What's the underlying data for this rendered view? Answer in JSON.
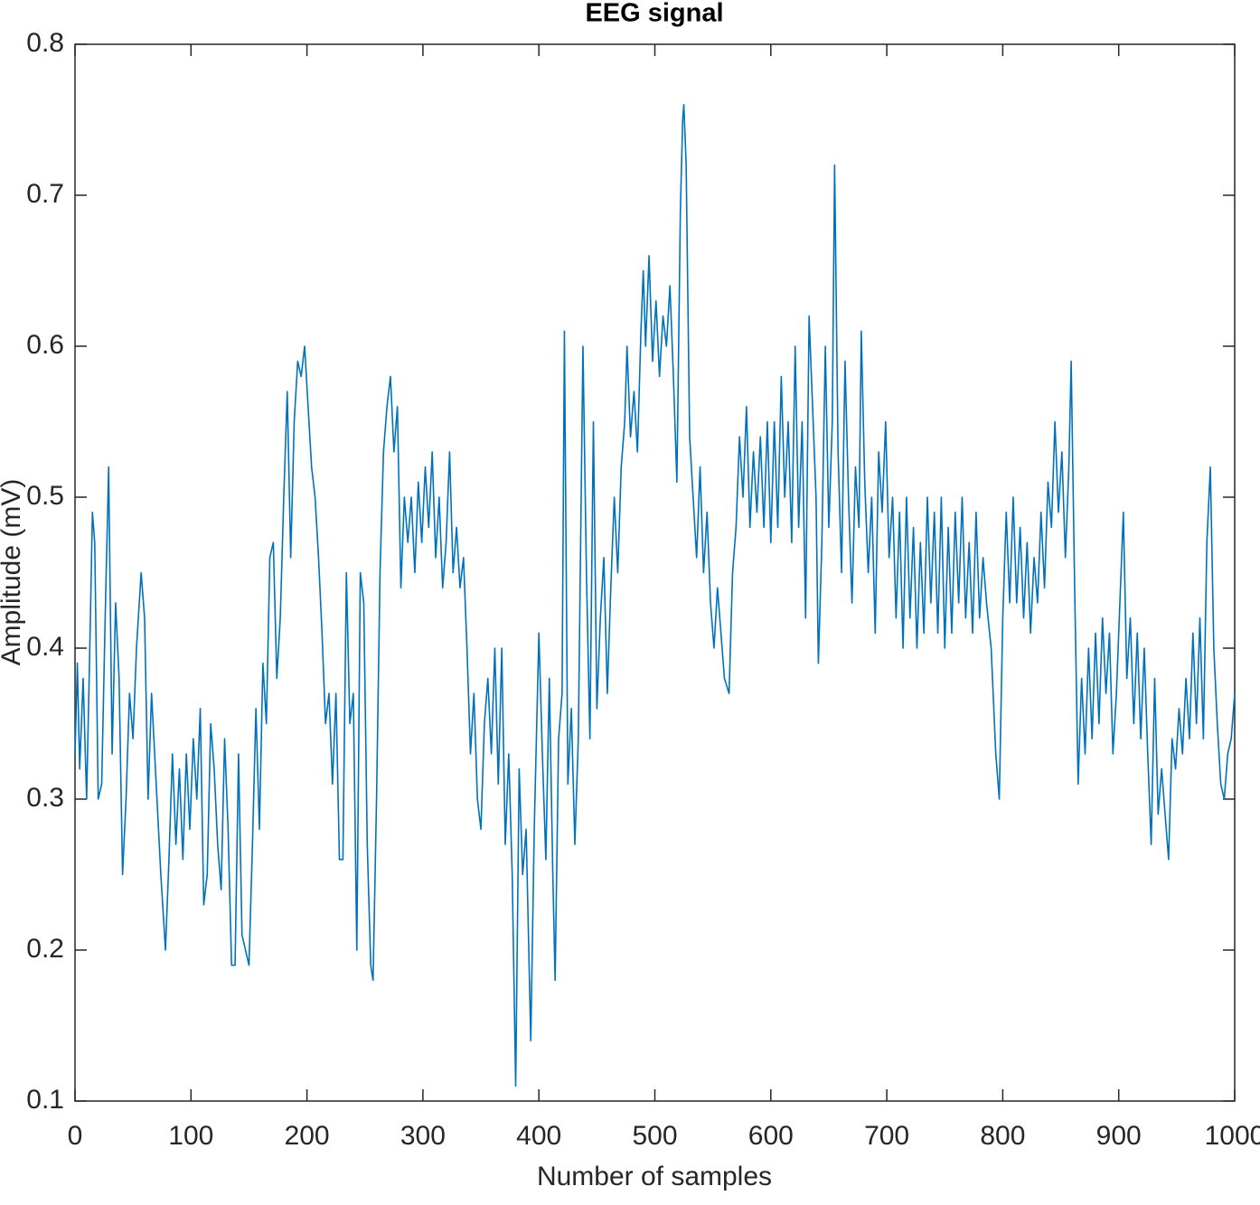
{
  "chart_data": {
    "type": "line",
    "title": "EEG signal",
    "x_label": "Number of samples",
    "y_label": "Amplitude (mV)",
    "x": [
      0,
      2,
      4,
      7,
      10,
      13,
      15,
      17,
      20,
      23,
      26,
      29,
      32,
      35,
      38,
      41,
      44,
      47,
      50,
      53,
      57,
      60,
      63,
      66,
      70,
      74,
      78,
      81,
      84,
      87,
      90,
      93,
      96,
      99,
      102,
      105,
      108,
      111,
      114,
      117,
      120,
      123,
      126,
      129,
      132,
      135,
      138,
      141,
      144,
      147,
      150,
      153,
      156,
      159,
      162,
      165,
      168,
      171,
      174,
      177,
      180,
      183,
      186,
      189,
      192,
      195,
      198,
      201,
      204,
      207,
      210,
      213,
      216,
      219,
      222,
      225,
      228,
      231,
      234,
      237,
      240,
      243,
      246,
      249,
      252,
      255,
      257,
      260,
      263,
      266,
      269,
      272,
      275,
      278,
      281,
      284,
      287,
      290,
      293,
      296,
      299,
      302,
      305,
      308,
      311,
      314,
      317,
      320,
      323,
      326,
      329,
      332,
      335,
      338,
      341,
      344,
      347,
      350,
      353,
      356,
      359,
      362,
      365,
      368,
      371,
      374,
      377,
      380,
      383,
      386,
      389,
      393,
      396,
      400,
      403,
      406,
      409,
      412,
      414,
      417,
      420,
      422,
      425,
      428,
      431,
      434,
      438,
      441,
      444,
      447,
      450,
      453,
      456,
      459,
      462,
      465,
      468,
      471,
      474,
      476,
      479,
      482,
      485,
      488,
      490,
      492,
      495,
      498,
      501,
      504,
      507,
      510,
      513,
      516,
      519,
      522,
      524,
      525,
      527,
      530,
      533,
      536,
      539,
      542,
      545,
      548,
      551,
      554,
      557,
      560,
      564,
      567,
      570,
      573,
      576,
      579,
      582,
      585,
      588,
      591,
      594,
      597,
      600,
      603,
      606,
      609,
      612,
      615,
      618,
      621,
      624,
      627,
      630,
      633,
      636,
      639,
      641,
      644,
      647,
      650,
      653,
      655,
      658,
      661,
      664,
      667,
      670,
      673,
      676,
      678,
      681,
      684,
      687,
      690,
      693,
      696,
      699,
      702,
      705,
      708,
      711,
      714,
      717,
      720,
      723,
      726,
      729,
      732,
      735,
      738,
      741,
      744,
      747,
      750,
      753,
      756,
      759,
      762,
      765,
      768,
      771,
      774,
      777,
      780,
      783,
      786,
      790,
      794,
      797,
      800,
      803,
      806,
      809,
      812,
      815,
      818,
      821,
      824,
      827,
      830,
      833,
      836,
      839,
      842,
      845,
      848,
      851,
      854,
      857,
      859,
      862,
      865,
      868,
      871,
      874,
      877,
      880,
      883,
      886,
      889,
      892,
      895,
      898,
      901,
      904,
      907,
      910,
      913,
      916,
      919,
      922,
      925,
      928,
      931,
      934,
      937,
      940,
      943,
      946,
      949,
      952,
      955,
      958,
      961,
      964,
      967,
      970,
      973,
      976,
      979,
      982,
      985,
      988,
      991,
      994,
      997,
      1000
    ],
    "values": [
      0.33,
      0.39,
      0.32,
      0.38,
      0.3,
      0.41,
      0.49,
      0.47,
      0.3,
      0.31,
      0.42,
      0.52,
      0.33,
      0.43,
      0.38,
      0.25,
      0.3,
      0.37,
      0.34,
      0.4,
      0.45,
      0.42,
      0.3,
      0.37,
      0.31,
      0.25,
      0.2,
      0.26,
      0.33,
      0.27,
      0.32,
      0.26,
      0.33,
      0.28,
      0.34,
      0.3,
      0.36,
      0.23,
      0.25,
      0.35,
      0.32,
      0.27,
      0.24,
      0.34,
      0.28,
      0.19,
      0.19,
      0.33,
      0.21,
      0.2,
      0.19,
      0.27,
      0.36,
      0.28,
      0.39,
      0.35,
      0.46,
      0.47,
      0.38,
      0.42,
      0.5,
      0.57,
      0.46,
      0.55,
      0.59,
      0.58,
      0.6,
      0.56,
      0.52,
      0.5,
      0.46,
      0.41,
      0.35,
      0.37,
      0.31,
      0.37,
      0.26,
      0.26,
      0.45,
      0.35,
      0.37,
      0.2,
      0.45,
      0.43,
      0.27,
      0.19,
      0.18,
      0.3,
      0.45,
      0.53,
      0.56,
      0.58,
      0.53,
      0.56,
      0.44,
      0.5,
      0.47,
      0.5,
      0.45,
      0.51,
      0.47,
      0.52,
      0.48,
      0.53,
      0.46,
      0.5,
      0.44,
      0.47,
      0.53,
      0.45,
      0.48,
      0.44,
      0.46,
      0.4,
      0.33,
      0.37,
      0.3,
      0.28,
      0.35,
      0.38,
      0.33,
      0.4,
      0.31,
      0.4,
      0.27,
      0.33,
      0.25,
      0.11,
      0.32,
      0.25,
      0.28,
      0.14,
      0.28,
      0.41,
      0.33,
      0.26,
      0.38,
      0.25,
      0.18,
      0.34,
      0.37,
      0.61,
      0.31,
      0.36,
      0.27,
      0.34,
      0.6,
      0.45,
      0.34,
      0.55,
      0.36,
      0.42,
      0.46,
      0.37,
      0.44,
      0.5,
      0.45,
      0.52,
      0.55,
      0.6,
      0.54,
      0.57,
      0.53,
      0.61,
      0.65,
      0.6,
      0.66,
      0.59,
      0.63,
      0.58,
      0.62,
      0.6,
      0.64,
      0.58,
      0.51,
      0.69,
      0.75,
      0.76,
      0.72,
      0.54,
      0.5,
      0.46,
      0.52,
      0.45,
      0.49,
      0.43,
      0.4,
      0.44,
      0.41,
      0.38,
      0.37,
      0.45,
      0.48,
      0.54,
      0.5,
      0.56,
      0.48,
      0.53,
      0.49,
      0.54,
      0.48,
      0.55,
      0.47,
      0.55,
      0.48,
      0.58,
      0.5,
      0.55,
      0.47,
      0.6,
      0.48,
      0.55,
      0.42,
      0.62,
      0.56,
      0.5,
      0.39,
      0.47,
      0.6,
      0.48,
      0.55,
      0.72,
      0.53,
      0.45,
      0.59,
      0.5,
      0.43,
      0.52,
      0.48,
      0.61,
      0.51,
      0.45,
      0.5,
      0.41,
      0.53,
      0.49,
      0.55,
      0.46,
      0.5,
      0.42,
      0.49,
      0.4,
      0.5,
      0.42,
      0.48,
      0.4,
      0.47,
      0.41,
      0.5,
      0.43,
      0.49,
      0.41,
      0.5,
      0.4,
      0.48,
      0.41,
      0.49,
      0.43,
      0.5,
      0.42,
      0.47,
      0.41,
      0.49,
      0.42,
      0.46,
      0.43,
      0.4,
      0.33,
      0.3,
      0.42,
      0.49,
      0.43,
      0.5,
      0.43,
      0.48,
      0.42,
      0.47,
      0.41,
      0.46,
      0.43,
      0.49,
      0.44,
      0.51,
      0.48,
      0.55,
      0.49,
      0.53,
      0.46,
      0.52,
      0.59,
      0.44,
      0.31,
      0.38,
      0.33,
      0.4,
      0.34,
      0.41,
      0.35,
      0.42,
      0.37,
      0.41,
      0.33,
      0.37,
      0.43,
      0.49,
      0.38,
      0.42,
      0.35,
      0.41,
      0.34,
      0.4,
      0.33,
      0.27,
      0.38,
      0.29,
      0.32,
      0.29,
      0.26,
      0.34,
      0.32,
      0.36,
      0.33,
      0.38,
      0.34,
      0.41,
      0.35,
      0.42,
      0.34,
      0.47,
      0.52,
      0.4,
      0.35,
      0.31,
      0.3,
      0.33,
      0.34,
      0.37
    ],
    "color": "#0072bd",
    "xlim": [
      0,
      1000
    ],
    "xticks": [
      0,
      100,
      200,
      300,
      400,
      500,
      600,
      700,
      800,
      900,
      1000
    ],
    "ylim": [
      0.1,
      0.8
    ],
    "yticks": [
      0.1,
      0.2,
      0.3,
      0.4,
      0.5,
      0.6,
      0.7,
      0.8
    ],
    "grid": false
  }
}
